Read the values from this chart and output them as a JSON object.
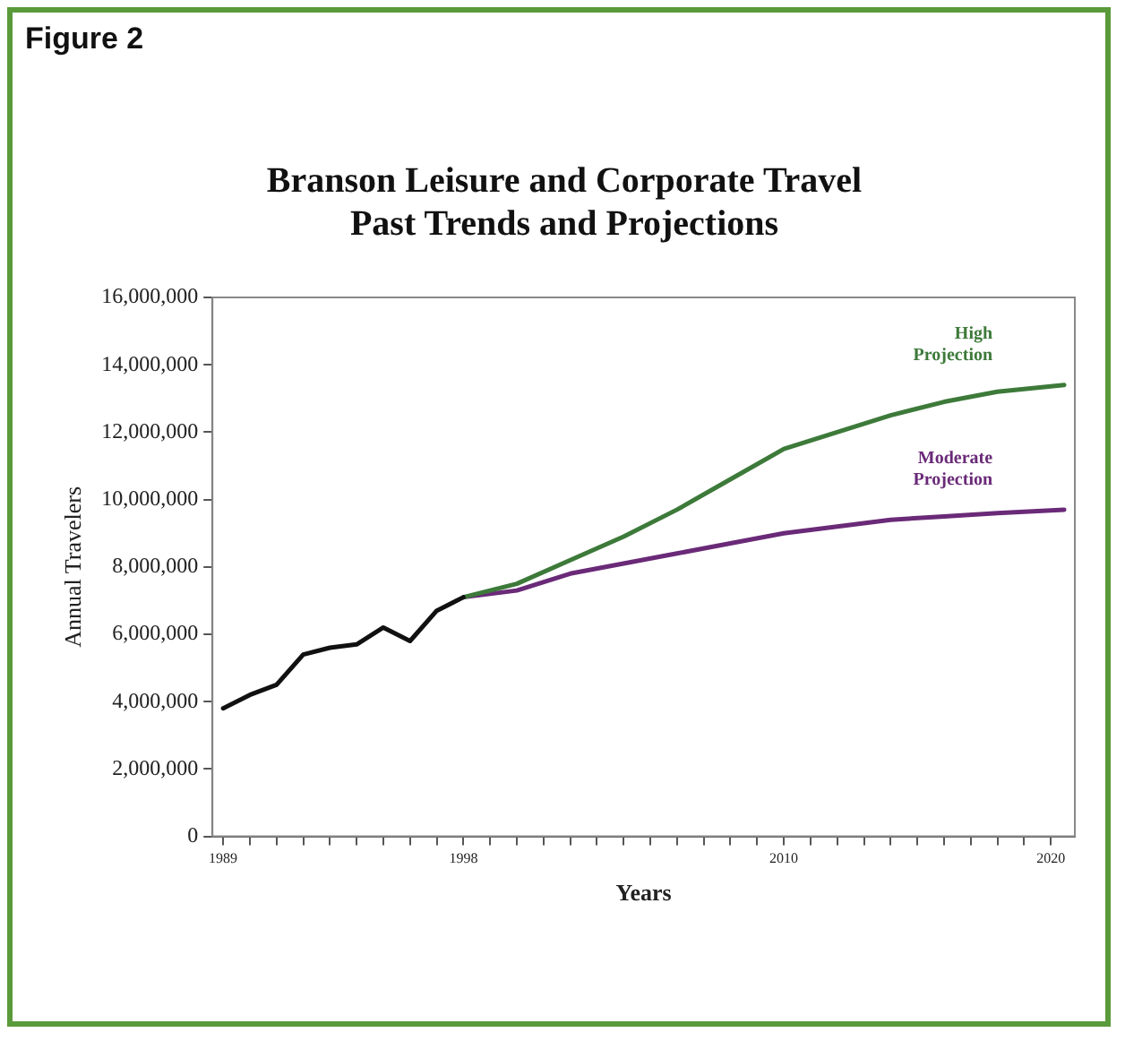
{
  "chart_data": {
    "type": "line",
    "title": "Branson Leisure and Corporate Travel\nPast Trends and Projections",
    "xlabel": "Years",
    "ylabel": "Annual Travelers",
    "annotations": [
      "Figure 2"
    ],
    "xlim": [
      1988.6,
      2020.9
    ],
    "xticks": [
      1989,
      {
        "value": 1990,
        "label": null
      },
      {
        "value": 1991,
        "label": null
      },
      {
        "value": 1992,
        "label": null
      },
      {
        "value": 1993,
        "label": null
      },
      {
        "value": 1994,
        "label": null
      },
      {
        "value": 1995,
        "label": null
      },
      {
        "value": 1996,
        "label": null
      },
      {
        "value": 1997,
        "label": null
      },
      1998,
      {
        "value": 1999,
        "label": null
      },
      {
        "value": 2000,
        "label": null
      },
      {
        "value": 2001,
        "label": null
      },
      {
        "value": 2002,
        "label": null
      },
      {
        "value": 2003,
        "label": null
      },
      {
        "value": 2004,
        "label": null
      },
      {
        "value": 2005,
        "label": null
      },
      {
        "value": 2006,
        "label": null
      },
      {
        "value": 2007,
        "label": null
      },
      {
        "value": 2008,
        "label": null
      },
      {
        "value": 2009,
        "label": null
      },
      2010,
      {
        "value": 2011,
        "label": null
      },
      {
        "value": 2012,
        "label": null
      },
      {
        "value": 2013,
        "label": null
      },
      {
        "value": 2014,
        "label": null
      },
      {
        "value": 2015,
        "label": null
      },
      {
        "value": 2016,
        "label": null
      },
      {
        "value": 2017,
        "label": null
      },
      {
        "value": 2018,
        "label": null
      },
      {
        "value": 2019,
        "label": null
      },
      2020
    ],
    "ylim": [
      0,
      16000000
    ],
    "yticks": [
      {
        "value": 0,
        "label": "0"
      },
      {
        "value": 2000000,
        "label": "2,000,000"
      },
      {
        "value": 4000000,
        "label": "4,000,000"
      },
      {
        "value": 6000000,
        "label": "6,000,000"
      },
      {
        "value": 8000000,
        "label": "8,000,000"
      },
      {
        "value": 10000000,
        "label": "10,000,000"
      },
      {
        "value": 12000000,
        "label": "12,000,000"
      },
      {
        "value": 14000000,
        "label": "14,000,000"
      },
      {
        "value": 16000000,
        "label": "16,000,000"
      }
    ],
    "grid": false,
    "legend": false,
    "marker": "none",
    "line_style": "solid",
    "series": [
      {
        "color": "#111111",
        "x": [
          1989,
          1990,
          1991,
          1992,
          1993,
          1994,
          1995,
          1996,
          1997,
          1998
        ],
        "values": [
          3800000,
          4200000,
          4500000,
          5400000,
          5600000,
          5700000,
          6200000,
          5800000,
          6700000,
          7100000
        ]
      },
      {
        "name": "High Projection",
        "color": "#3d7a3a",
        "x": [
          1998,
          2000,
          2002,
          2004,
          2006,
          2008,
          2010,
          2012,
          2014,
          2016,
          2018,
          2020.5
        ],
        "values": [
          7100000,
          7500000,
          8200000,
          8900000,
          9700000,
          10600000,
          11500000,
          12000000,
          12500000,
          12900000,
          13200000,
          13400000
        ]
      },
      {
        "name": "Moderate Projection",
        "color": "#6a2a78",
        "x": [
          1998,
          2000,
          2002,
          2004,
          2006,
          2008,
          2010,
          2012,
          2014,
          2016,
          2018,
          2020.5
        ],
        "values": [
          7100000,
          7300000,
          7800000,
          8100000,
          8400000,
          8700000,
          9000000,
          9200000,
          9400000,
          9500000,
          9600000,
          9700000
        ]
      }
    ]
  }
}
